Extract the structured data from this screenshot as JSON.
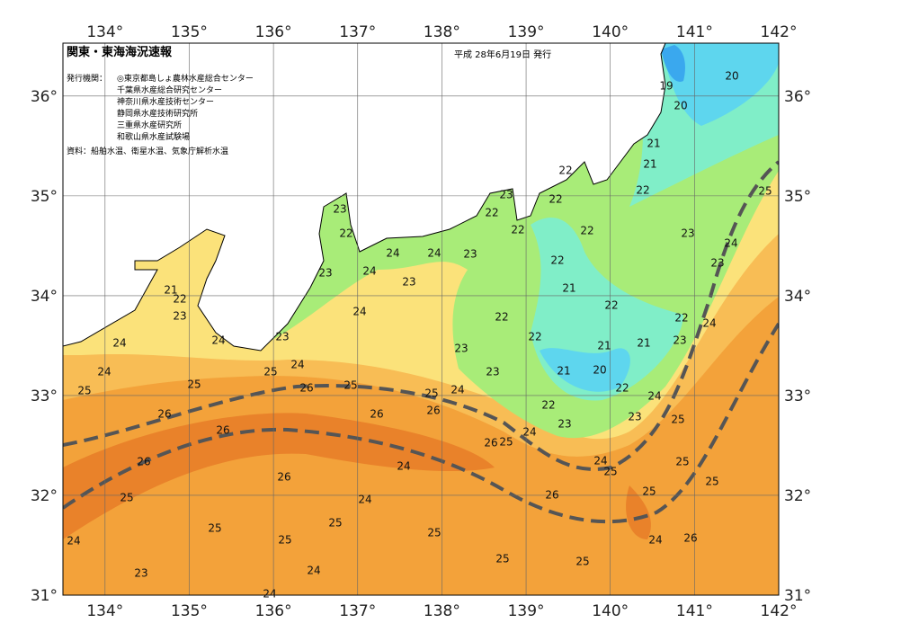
{
  "header": {
    "title": "関東・東海海況速報",
    "date": "平成 28年6月19日 発行",
    "issuer_label": "発行機関：",
    "issuers": [
      "◎東京都島しょ農林水産総合センター",
      "千葉県水産総合研究センター",
      "神奈川県水産技術センター",
      "静岡県水産技術研究所",
      "三重県水産研究所",
      "和歌山県水産試験場"
    ],
    "source": "資料：船舶水温、衛星水温、気象庁解析水温"
  },
  "map": {
    "xlim": [
      133.5,
      142
    ],
    "ylim": [
      31,
      36.53
    ],
    "lon_ticks": [
      {
        "value": 134,
        "label": "134°"
      },
      {
        "value": 135,
        "label": "135°"
      },
      {
        "value": 136,
        "label": "136°"
      },
      {
        "value": 137,
        "label": "137°"
      },
      {
        "value": 138,
        "label": "138°"
      },
      {
        "value": 139,
        "label": "139°"
      },
      {
        "value": 140,
        "label": "140°"
      },
      {
        "value": 141,
        "label": "141°"
      },
      {
        "value": 142,
        "label": "142°"
      }
    ],
    "lat_ticks": [
      {
        "value": 31,
        "label": "31°"
      },
      {
        "value": 32,
        "label": "32°"
      },
      {
        "value": 33,
        "label": "33°"
      },
      {
        "value": 34,
        "label": "34°"
      },
      {
        "value": 35,
        "label": "35°"
      },
      {
        "value": 36,
        "label": "36°"
      }
    ],
    "contour_labels": [
      20,
      19,
      20,
      21,
      21,
      22,
      22,
      23,
      22,
      22,
      22,
      22,
      23,
      24,
      25,
      23,
      23,
      22,
      24,
      24,
      23,
      24,
      23,
      22,
      23,
      21,
      21,
      22,
      23,
      22,
      24,
      22,
      22,
      24,
      24,
      23,
      22,
      21,
      23,
      21,
      23,
      24,
      24,
      24,
      25,
      21,
      20,
      23,
      25,
      25,
      26,
      25,
      25,
      24,
      22,
      24,
      22,
      23,
      26,
      26,
      26,
      23,
      25,
      24,
      26,
      26,
      25,
      24,
      25,
      25,
      26,
      24,
      25,
      26,
      25,
      26,
      25,
      24,
      25,
      25,
      25,
      24,
      26,
      24,
      25,
      25,
      25,
      23,
      24,
      24
    ]
  }
}
